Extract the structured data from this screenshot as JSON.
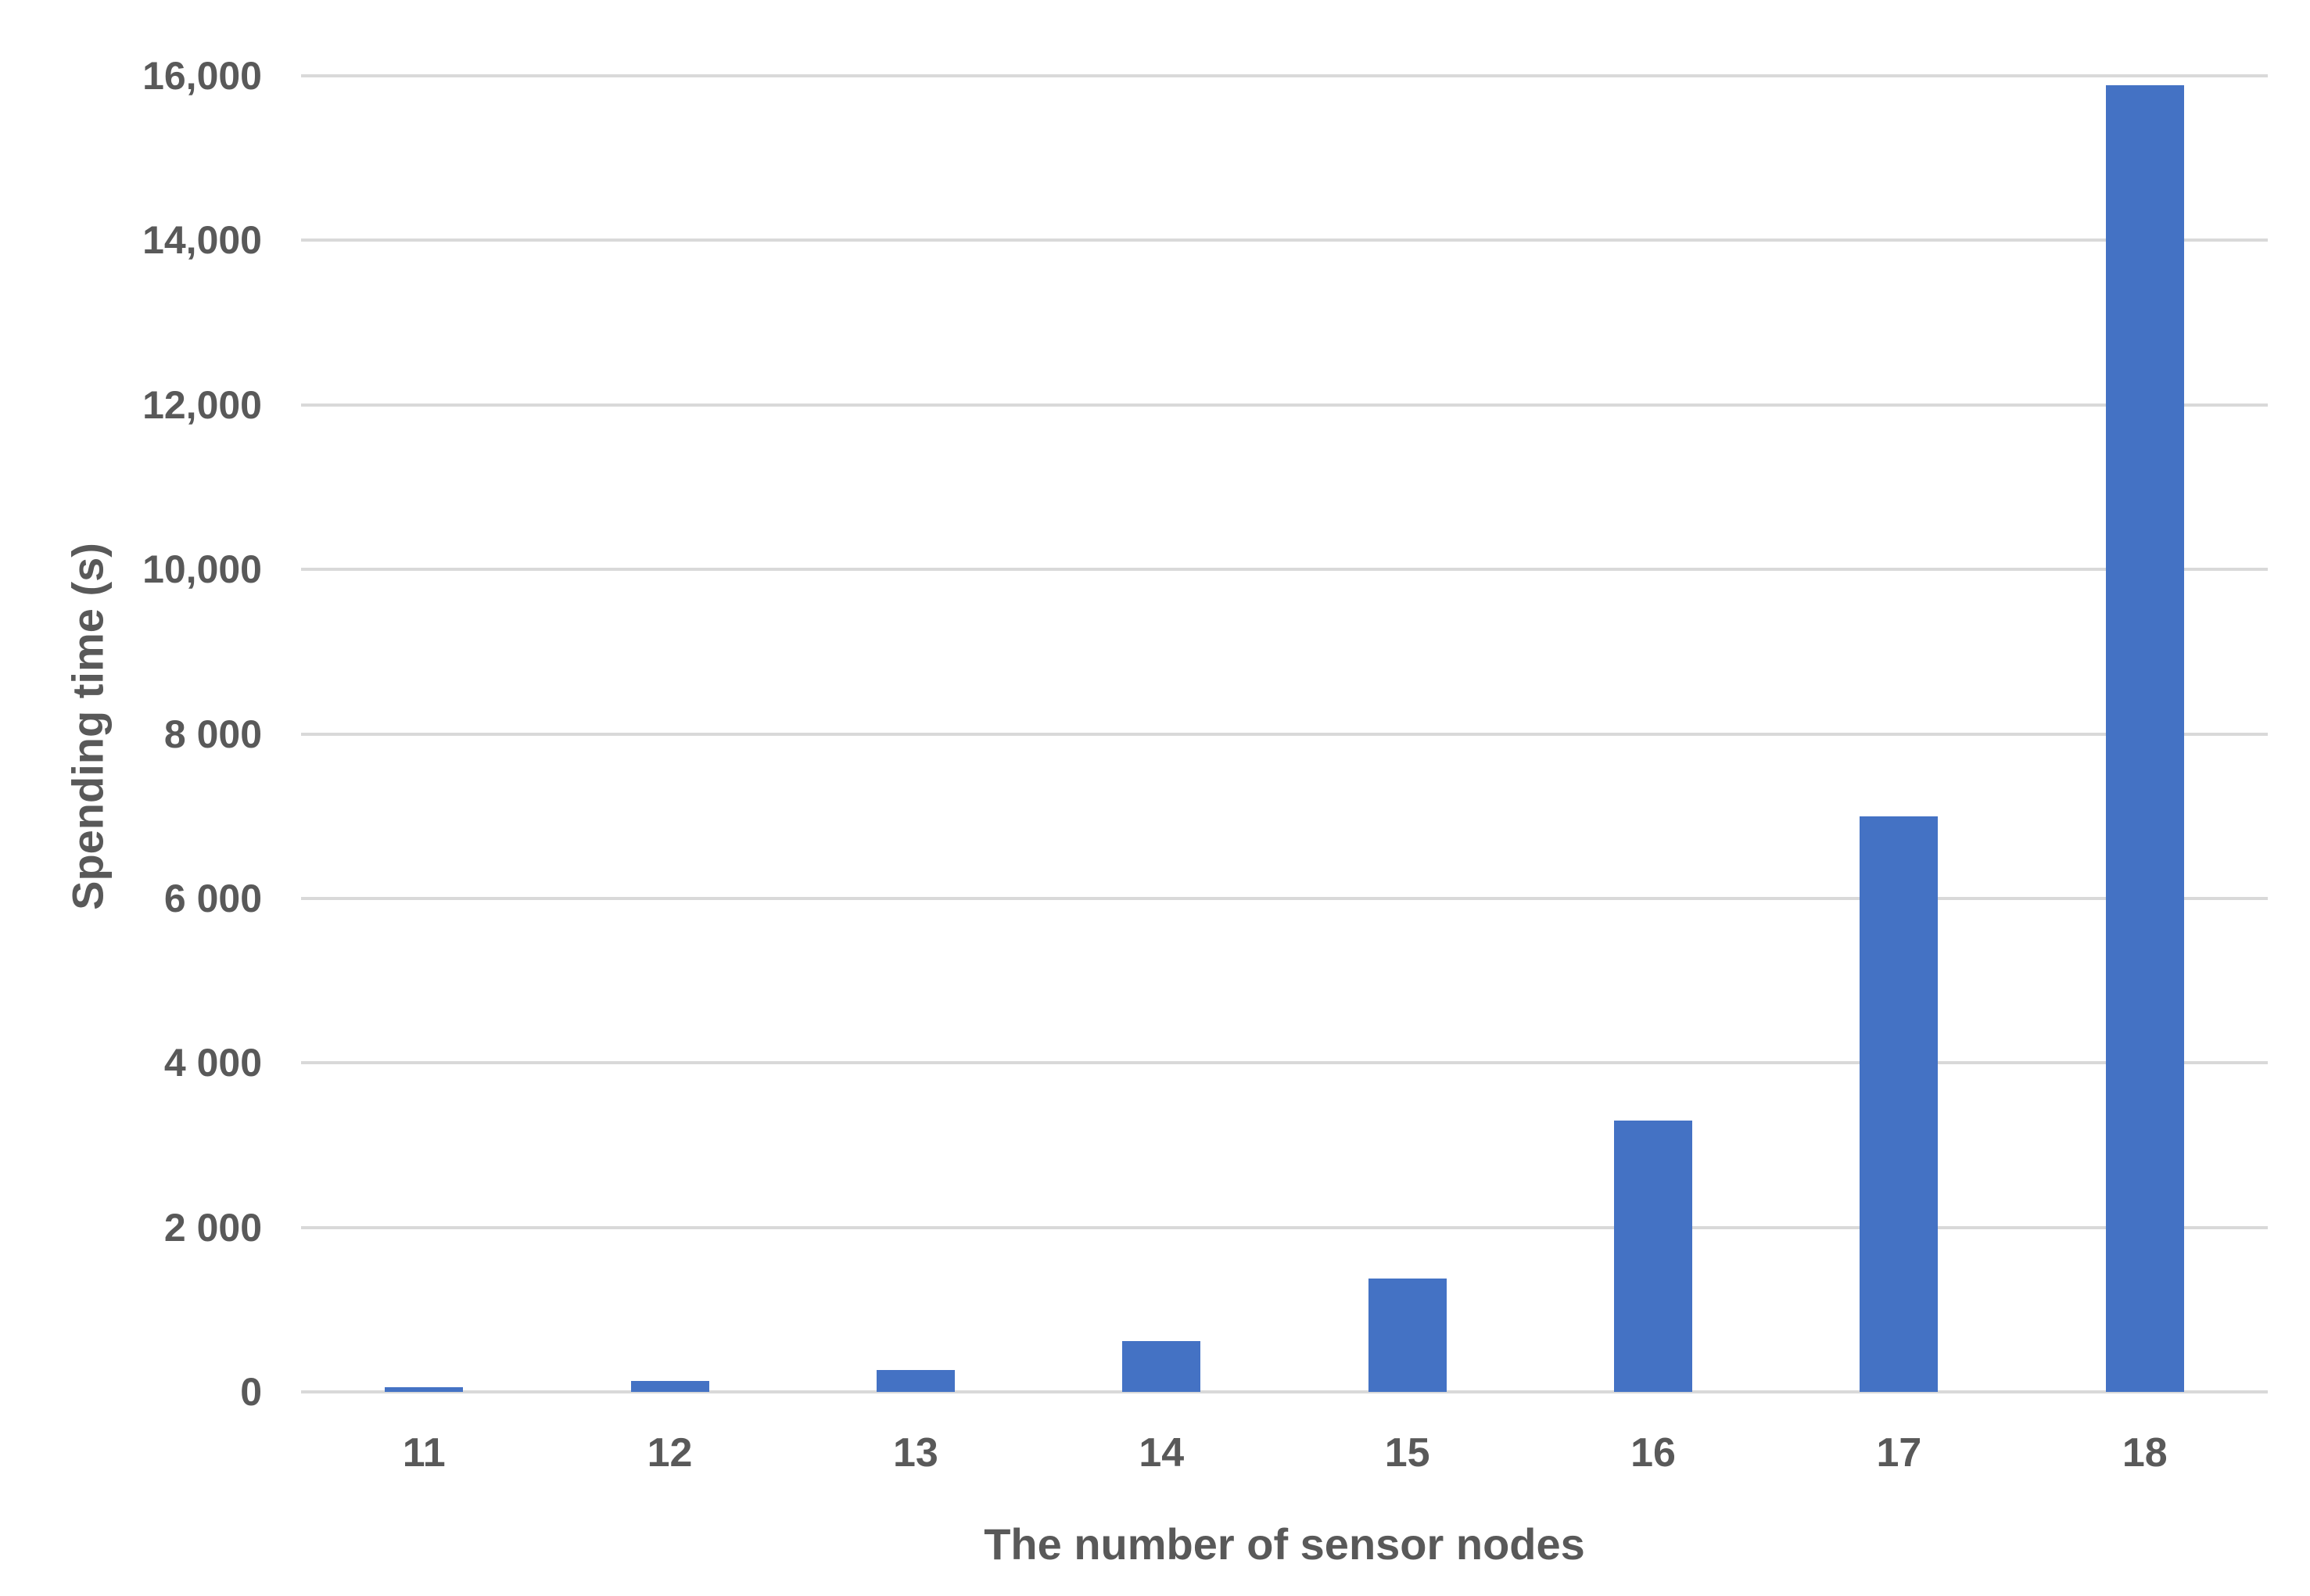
{
  "chart_data": {
    "type": "bar",
    "title": "",
    "xlabel": "The number of sensor nodes",
    "ylabel": "Spending time (s)",
    "categories": [
      "11",
      "12",
      "13",
      "14",
      "15",
      "16",
      "17",
      "18"
    ],
    "values": [
      60,
      130,
      270,
      620,
      1380,
      3300,
      7000,
      15890
    ],
    "ylim": [
      0,
      16000
    ],
    "ytick_values": [
      0,
      2000,
      4000,
      6000,
      8000,
      10000,
      12000,
      14000,
      16000
    ],
    "ytick_labels": [
      "0",
      "2 000",
      "4 000",
      "6 000",
      "8 000",
      "10,000",
      "12,000",
      "14,000",
      "16,000"
    ],
    "grid": true,
    "legend": "none",
    "bar_color": "#4472c4",
    "gridline_color": "#d9d9d9",
    "text_color": "#595959"
  }
}
